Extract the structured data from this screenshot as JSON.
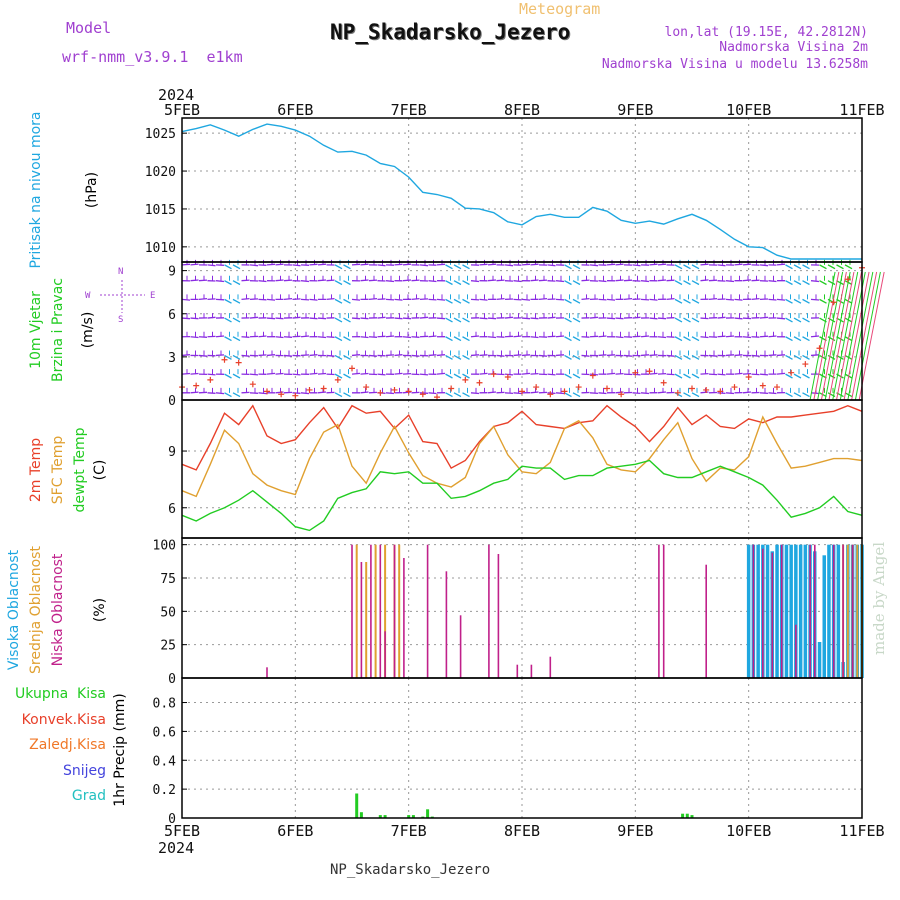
{
  "header": {
    "model_label": "Model",
    "model_name": "wrf-nmm_v3.9.1  e1km",
    "product": "Meteogram",
    "station": "NP_Skadarsko_Jezero",
    "coords": "lon,lat (19.15E, 42.2812N)",
    "elevation": "Nadmorska Visina 2m",
    "model_elevation": "Nadmorska Visina u modelu 13.6258m",
    "footer_station": "NP_Skadarsko_Jezero",
    "credit": "made by Angel"
  },
  "colors": {
    "pressure": "#1fa7e0",
    "wind_label": "#22cc22",
    "wind_speed": "#e8402a",
    "wind_barbs": [
      "#8a2be2",
      "#1fa7e0",
      "#22cc22",
      "#e84a7a"
    ],
    "t2m": "#e8402a",
    "tsfc": "#e0a030",
    "dewpt": "#22cc22",
    "cloud_high": "#1fa7e0",
    "cloud_mid": "#e0a030",
    "cloud_low": "#c0208a",
    "precip_total": "#22cc22",
    "precip_conv": "#e8402a",
    "precip_frozen": "#f07828",
    "precip_snow": "#4444dd",
    "precip_hail": "#22c0c0",
    "purple_text": "#a040d0",
    "credit": "#c8d8c8"
  },
  "chart_data": [
    {
      "type": "line",
      "ylabel": "(hPa)",
      "side_label": "Pritisak na nivou mora",
      "xlim": [
        "2024-02-05T00:00",
        "2024-02-11T00:00"
      ],
      "ylim": [
        1008,
        1027
      ],
      "yticks": [
        1010,
        1015,
        1020,
        1025
      ],
      "x_ticks": [
        "5FEB",
        "6FEB",
        "7FEB",
        "8FEB",
        "9FEB",
        "10FEB",
        "11FEB"
      ],
      "top_year": "2024",
      "grid": true,
      "series": [
        {
          "x": [
            0,
            3,
            6,
            9,
            12,
            15,
            18,
            21,
            24,
            27,
            30,
            33,
            36,
            39,
            42,
            45,
            48,
            51,
            54,
            57,
            60,
            63,
            66,
            69,
            72,
            75,
            78,
            81,
            84,
            87,
            90,
            93,
            96,
            99,
            102,
            105,
            108,
            111,
            114,
            117,
            120,
            123,
            126,
            129,
            132,
            135,
            138,
            141,
            144
          ],
          "values": [
            1025.2,
            1025.6,
            1026.1,
            1025.4,
            1024.6,
            1025.5,
            1026.2,
            1025.9,
            1025.4,
            1024.6,
            1023.4,
            1022.5,
            1022.6,
            1022.1,
            1021.0,
            1020.6,
            1019.2,
            1017.2,
            1016.9,
            1016.4,
            1015.1,
            1015.0,
            1014.5,
            1013.3,
            1012.9,
            1014.0,
            1014.3,
            1013.9,
            1013.9,
            1015.2,
            1014.7,
            1013.5,
            1013.1,
            1013.4,
            1013.0,
            1013.7,
            1014.3,
            1013.5,
            1012.3,
            1011.0,
            1010.0,
            1009.9,
            1008.9,
            1008.4,
            1008.4,
            1008.4,
            1008.4,
            1008.4,
            1008.4
          ]
        }
      ]
    },
    {
      "type": "scatter",
      "ylabel": "(m/s)",
      "side_label_1": "10m Vjetar",
      "side_label_2": "Brzina i Pravac",
      "compass_top": "N",
      "compass_left": "W",
      "compass_right": "E",
      "compass_bottom": "S",
      "ylim": [
        0,
        9.6
      ],
      "yticks": [
        0,
        3,
        6,
        9
      ],
      "grid": true,
      "series": [
        {
          "name": "10m wind speed",
          "x": [
            0,
            3,
            6,
            9,
            12,
            15,
            18,
            21,
            24,
            27,
            30,
            33,
            36,
            39,
            42,
            45,
            48,
            51,
            54,
            57,
            60,
            63,
            66,
            69,
            72,
            75,
            78,
            81,
            84,
            87,
            90,
            93,
            96,
            99,
            102,
            105,
            108,
            111,
            114,
            117,
            120,
            123,
            126,
            129,
            132,
            135,
            138,
            141,
            144
          ],
          "values": [
            0.9,
            1.0,
            1.4,
            2.8,
            2.6,
            1.1,
            0.6,
            0.4,
            0.3,
            0.7,
            0.8,
            1.4,
            2.2,
            0.9,
            0.5,
            0.7,
            0.6,
            0.4,
            0.2,
            0.8,
            1.4,
            1.2,
            1.8,
            1.6,
            0.6,
            0.9,
            0.4,
            0.6,
            0.9,
            1.7,
            0.8,
            0.4,
            1.9,
            2.0,
            1.2,
            0.5,
            0.8,
            0.7,
            0.6,
            0.9,
            1.6,
            1.0,
            0.9,
            1.9,
            2.5,
            3.6,
            6.8,
            8.4,
            9.2
          ]
        }
      ]
    },
    {
      "type": "line",
      "ylabel": "(C)",
      "side_label_1": "2m Temp",
      "side_label_2": "SFC Temp",
      "side_label_3": "dewpt Temp",
      "ylim": [
        4.4,
        11.7
      ],
      "yticks": [
        6,
        9
      ],
      "grid": true,
      "series": [
        {
          "name": "2m Temp",
          "x": [
            0,
            3,
            6,
            9,
            12,
            15,
            18,
            21,
            24,
            27,
            30,
            33,
            36,
            39,
            42,
            45,
            48,
            51,
            54,
            57,
            60,
            63,
            66,
            69,
            72,
            75,
            78,
            81,
            84,
            87,
            90,
            93,
            96,
            99,
            102,
            105,
            108,
            111,
            114,
            117,
            120,
            123,
            126,
            129,
            132,
            135,
            138,
            141,
            144
          ],
          "values": [
            8.3,
            8.0,
            9.4,
            11.0,
            10.4,
            11.4,
            9.8,
            9.4,
            9.6,
            10.5,
            11.3,
            10.2,
            11.4,
            11.0,
            11.1,
            10.2,
            10.9,
            9.5,
            9.4,
            8.1,
            8.5,
            9.5,
            10.3,
            10.5,
            11.1,
            10.4,
            10.3,
            10.2,
            10.5,
            10.6,
            11.4,
            10.8,
            10.3,
            9.5,
            10.3,
            11.3,
            10.4,
            10.9,
            10.3,
            10.2,
            10.7,
            10.5,
            10.8,
            10.8,
            10.9,
            11.0,
            11.1,
            11.4,
            11.1
          ]
        },
        {
          "name": "SFC Temp",
          "x": [
            0,
            3,
            6,
            9,
            12,
            15,
            18,
            21,
            24,
            27,
            30,
            33,
            36,
            39,
            42,
            45,
            48,
            51,
            54,
            57,
            60,
            63,
            66,
            69,
            72,
            75,
            78,
            81,
            84,
            87,
            90,
            93,
            96,
            99,
            102,
            105,
            108,
            111,
            114,
            117,
            120,
            123,
            126,
            129,
            132,
            135,
            138,
            141,
            144
          ],
          "values": [
            6.9,
            6.6,
            8.3,
            10.1,
            9.4,
            7.8,
            7.2,
            6.9,
            6.7,
            8.6,
            10.0,
            10.4,
            8.2,
            7.3,
            8.9,
            10.3,
            8.9,
            7.7,
            7.3,
            7.1,
            7.6,
            9.4,
            10.3,
            8.8,
            7.9,
            7.8,
            8.4,
            10.2,
            10.6,
            9.7,
            8.3,
            8.0,
            7.9,
            8.6,
            9.6,
            10.5,
            8.6,
            7.4,
            8.1,
            8.0,
            8.7,
            10.8,
            9.4,
            8.1,
            8.2,
            8.4,
            8.6,
            8.6,
            8.5
          ]
        },
        {
          "name": "dewpt Temp",
          "x": [
            0,
            3,
            6,
            9,
            12,
            15,
            18,
            21,
            24,
            27,
            30,
            33,
            36,
            39,
            42,
            45,
            48,
            51,
            54,
            57,
            60,
            63,
            66,
            69,
            72,
            75,
            78,
            81,
            84,
            87,
            90,
            93,
            96,
            99,
            102,
            105,
            108,
            111,
            114,
            117,
            120,
            123,
            126,
            129,
            132,
            135,
            138,
            141,
            144
          ],
          "values": [
            5.6,
            5.3,
            5.7,
            6.0,
            6.4,
            6.9,
            6.3,
            5.7,
            5.0,
            4.8,
            5.3,
            6.5,
            6.8,
            7.0,
            7.9,
            7.8,
            7.9,
            7.3,
            7.3,
            6.5,
            6.6,
            6.9,
            7.3,
            7.5,
            8.2,
            8.1,
            8.1,
            7.5,
            7.7,
            7.7,
            8.1,
            8.2,
            8.3,
            8.5,
            7.8,
            7.6,
            7.6,
            7.9,
            8.2,
            7.9,
            7.6,
            7.2,
            6.4,
            5.5,
            5.7,
            6.0,
            6.6,
            5.8,
            5.6
          ]
        }
      ]
    },
    {
      "type": "bar",
      "ylabel": "(%)",
      "side_label_1": "Visoka Oblacnost",
      "side_label_2": "Srednja Oblacnost",
      "side_label_3": "Niska Oblacnost",
      "ylim": [
        0,
        105
      ],
      "yticks": [
        0,
        25,
        50,
        75,
        100
      ],
      "grid": true,
      "series": [
        {
          "name": "Visoka Oblacnost",
          "x": [
            120,
            121,
            122,
            123,
            124,
            125,
            126,
            127,
            128,
            129,
            130,
            131,
            132,
            133,
            134,
            135,
            136,
            137,
            138,
            139,
            140,
            141,
            142,
            143,
            144
          ],
          "values": [
            100,
            100,
            100,
            100,
            100,
            95,
            100,
            100,
            100,
            100,
            100,
            100,
            100,
            100,
            95,
            27,
            92,
            100,
            100,
            100,
            12,
            100,
            100,
            100,
            100
          ]
        },
        {
          "name": "Srednja Oblacnost",
          "x": [
            37,
            39,
            41,
            43,
            45,
            46,
            125,
            138,
            140,
            141,
            142,
            143,
            144
          ],
          "values": [
            100,
            87,
            100,
            100,
            100,
            100,
            0,
            0,
            100,
            100,
            100,
            100,
            100
          ]
        },
        {
          "name": "Niska Oblacnost",
          "x": [
            2,
            18,
            22,
            30,
            35,
            36,
            38,
            40,
            42,
            43,
            45,
            47,
            52,
            56,
            59,
            65,
            67,
            71,
            74,
            78,
            80,
            81,
            83,
            86,
            92,
            101,
            102,
            111,
            112,
            118,
            121,
            123,
            125,
            127,
            130,
            133,
            134,
            138,
            140,
            142
          ],
          "values": [
            0,
            8,
            0,
            0,
            0,
            100,
            87,
            100,
            100,
            35,
            100,
            90,
            100,
            80,
            47,
            100,
            93,
            10,
            10,
            16,
            0,
            0,
            0,
            0,
            0,
            100,
            100,
            85,
            0,
            0,
            100,
            97,
            94,
            100,
            40,
            100,
            100,
            100,
            100,
            100
          ]
        }
      ]
    },
    {
      "type": "bar",
      "ylabel": "1hr Precip (mm)",
      "side_label_1": "Ukupna  Kisa",
      "side_label_2": "Konvek.Kisa",
      "side_label_3": "Zaledj.Kisa",
      "side_label_4": "Snijeg",
      "side_label_5": "Grad",
      "ylim": [
        0,
        0.97
      ],
      "yticks": [
        0,
        0.2,
        0.4,
        0.6,
        0.8
      ],
      "ytick_labels": [
        "0",
        "0.2",
        "0.4",
        "0.6",
        "0.8"
      ],
      "x_ticks": [
        "5FEB",
        "6FEB",
        "7FEB",
        "8FEB",
        "9FEB",
        "10FEB",
        "11FEB"
      ],
      "bottom_year": "2024",
      "grid": true,
      "series": [
        {
          "name": "Ukupna  Kisa",
          "x": [
            37,
            38,
            42,
            43,
            48,
            49,
            51,
            52,
            53,
            106,
            107,
            108
          ],
          "values": [
            0.17,
            0.04,
            0.02,
            0.02,
            0.02,
            0.02,
            0.01,
            0.06,
            0.01,
            0.03,
            0.03,
            0.02
          ]
        }
      ]
    }
  ]
}
